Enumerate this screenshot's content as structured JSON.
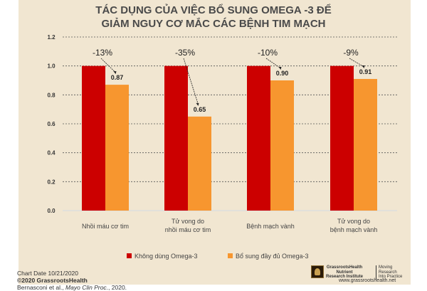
{
  "chart_data": {
    "type": "bar",
    "title": [
      "TÁC DỤNG CỦA VIỆC BỔ SUNG OMEGA -3 ĐỂ",
      "GIẢM NGUY CƠ MẮC CÁC BỆNH TIM MẠCH"
    ],
    "categories": [
      [
        "Nhồi máu cơ tim"
      ],
      [
        "Tử vong do",
        "nhồi máu cơ tim"
      ],
      [
        "Bệnh mạch vành"
      ],
      [
        "Tử vong do",
        "bệnh mạch vành"
      ]
    ],
    "series": [
      {
        "name": "Không dùng Omega-3",
        "color": "#cc0000",
        "values": [
          1.0,
          1.0,
          1.0,
          1.0
        ]
      },
      {
        "name": "Bổ sung đầy đủ Omega-3",
        "color": "#f7962f",
        "values": [
          0.87,
          0.65,
          0.9,
          0.91
        ]
      }
    ],
    "data_labels": [
      "0.87",
      "0.65",
      "0.90",
      "0.91"
    ],
    "annotations": [
      "-13%",
      "-35%",
      "-10%",
      "-9%"
    ],
    "yticks": [
      "0.0",
      "0.2",
      "0.4",
      "0.6",
      "0.8",
      "1.0",
      "1.2"
    ],
    "ylim": [
      0,
      1.2
    ],
    "grid": true,
    "legend": "bottom"
  },
  "footer": {
    "chart_date": "Chart Date 10/21/2020",
    "copyright": "©2020 GrassrootsHealth",
    "citation_authors": "Bernasconi et al., ",
    "citation_journal": "Mayo Clin Proc.",
    "citation_year": ", 2020.",
    "org_name": [
      "GrassrootsHealth",
      "Nutrient",
      "Research Institute"
    ],
    "tagline": [
      "Moving",
      "Research",
      "Into Practice"
    ],
    "website": "www.grassrootshealth.net"
  }
}
